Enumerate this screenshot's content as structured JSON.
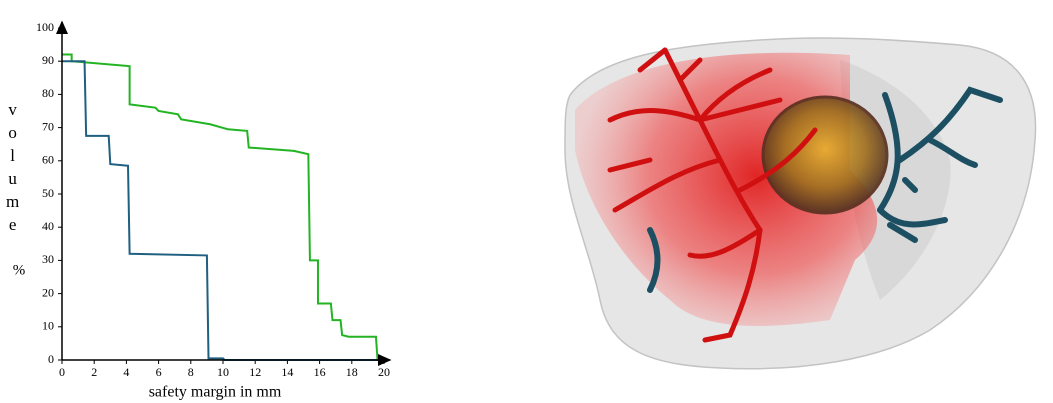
{
  "chart_data": {
    "type": "line",
    "x_label": "safety margin in mm",
    "y_label": "volume",
    "y_unit": "%",
    "xlim": [
      0,
      20
    ],
    "xticks": [
      0,
      2,
      4,
      6,
      8,
      10,
      12,
      14,
      16,
      18,
      20
    ],
    "ylim": [
      0,
      100
    ],
    "yticks": [
      0,
      10,
      20,
      30,
      40,
      50,
      60,
      70,
      80,
      90,
      100
    ],
    "series": [
      {
        "color": "#22b422",
        "x": [
          0,
          0.6,
          0.6,
          4.2,
          4.2,
          5.8,
          6.0,
          7.2,
          7.4,
          9.2,
          10.3,
          11.5,
          11.6,
          14.4,
          15.3,
          15.4,
          15.9,
          15.9,
          16.7,
          16.8,
          17.3,
          17.4,
          17.8,
          19.5,
          19.6,
          20
        ],
        "values": [
          92,
          92,
          90,
          88.5,
          77,
          76,
          75,
          74,
          72.5,
          71,
          69.5,
          69,
          64,
          63,
          62,
          30,
          30,
          17,
          17,
          12,
          12,
          7.5,
          7,
          7,
          0,
          0
        ]
      },
      {
        "color": "#1f5f80",
        "x": [
          0,
          1.4,
          1.5,
          2.9,
          3.0,
          4.1,
          4.2,
          9.0,
          9.1,
          10,
          10.1,
          20
        ],
        "values": [
          90,
          90,
          67.5,
          67.5,
          59,
          58.5,
          32,
          31.5,
          0.5,
          0.5,
          0,
          0
        ]
      }
    ]
  }
}
